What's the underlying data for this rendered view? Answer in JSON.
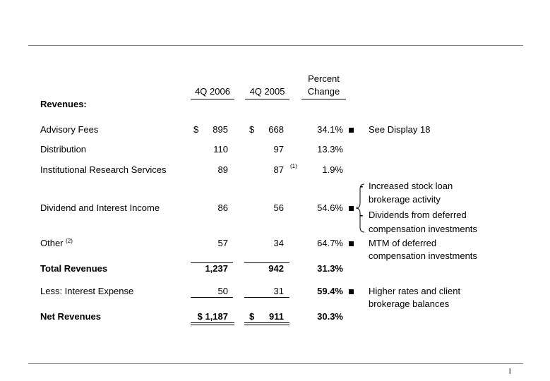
{
  "headers": {
    "col1": "4Q 2006",
    "col2": "4Q 2005",
    "pct1": "Percent",
    "pct2": "Change"
  },
  "section": "Revenues:",
  "rows": [
    {
      "label": "Advisory Fees",
      "c1cur": "$",
      "c1": "895",
      "c2cur": "$",
      "c2": "668",
      "pct": "34.1%",
      "bullet": true,
      "note": "See Display 18"
    },
    {
      "label": "Distribution",
      "c1": "110",
      "c2": "97",
      "pct": "13.3%"
    },
    {
      "label": "Institutional Research Services",
      "c1": "89",
      "c2": "87",
      "c2sup": "(1)",
      "pct": "1.9%"
    },
    {
      "label": "Dividend and Interest Income",
      "c1": "86",
      "c2": "56",
      "pct": "54.6%",
      "bullet": true,
      "notes": [
        [
          "Increased stock loan",
          "brokerage activity"
        ],
        [
          "Dividends from deferred",
          "compensation investments"
        ]
      ]
    },
    {
      "label": "Other",
      "labelsup": "(2)",
      "c1": "57",
      "c2": "34",
      "pct": "64.7%",
      "bullet": true,
      "note": [
        "MTM of deferred",
        "compensation investments"
      ]
    },
    {
      "label": "Total Revenues",
      "c1": "1,237",
      "c2": "942",
      "pct": "31.3%"
    },
    {
      "label": "Less:  Interest Expense",
      "c1": "50",
      "c2": "31",
      "pct": "59.4%",
      "bullet": true,
      "note": [
        "Higher rates and client",
        "brokerage balances"
      ]
    },
    {
      "label": "Net Revenues",
      "c1": "$ 1,187",
      "c2cur": "$",
      "c2": "911",
      "pct": "30.3%"
    }
  ],
  "page_number": "l"
}
